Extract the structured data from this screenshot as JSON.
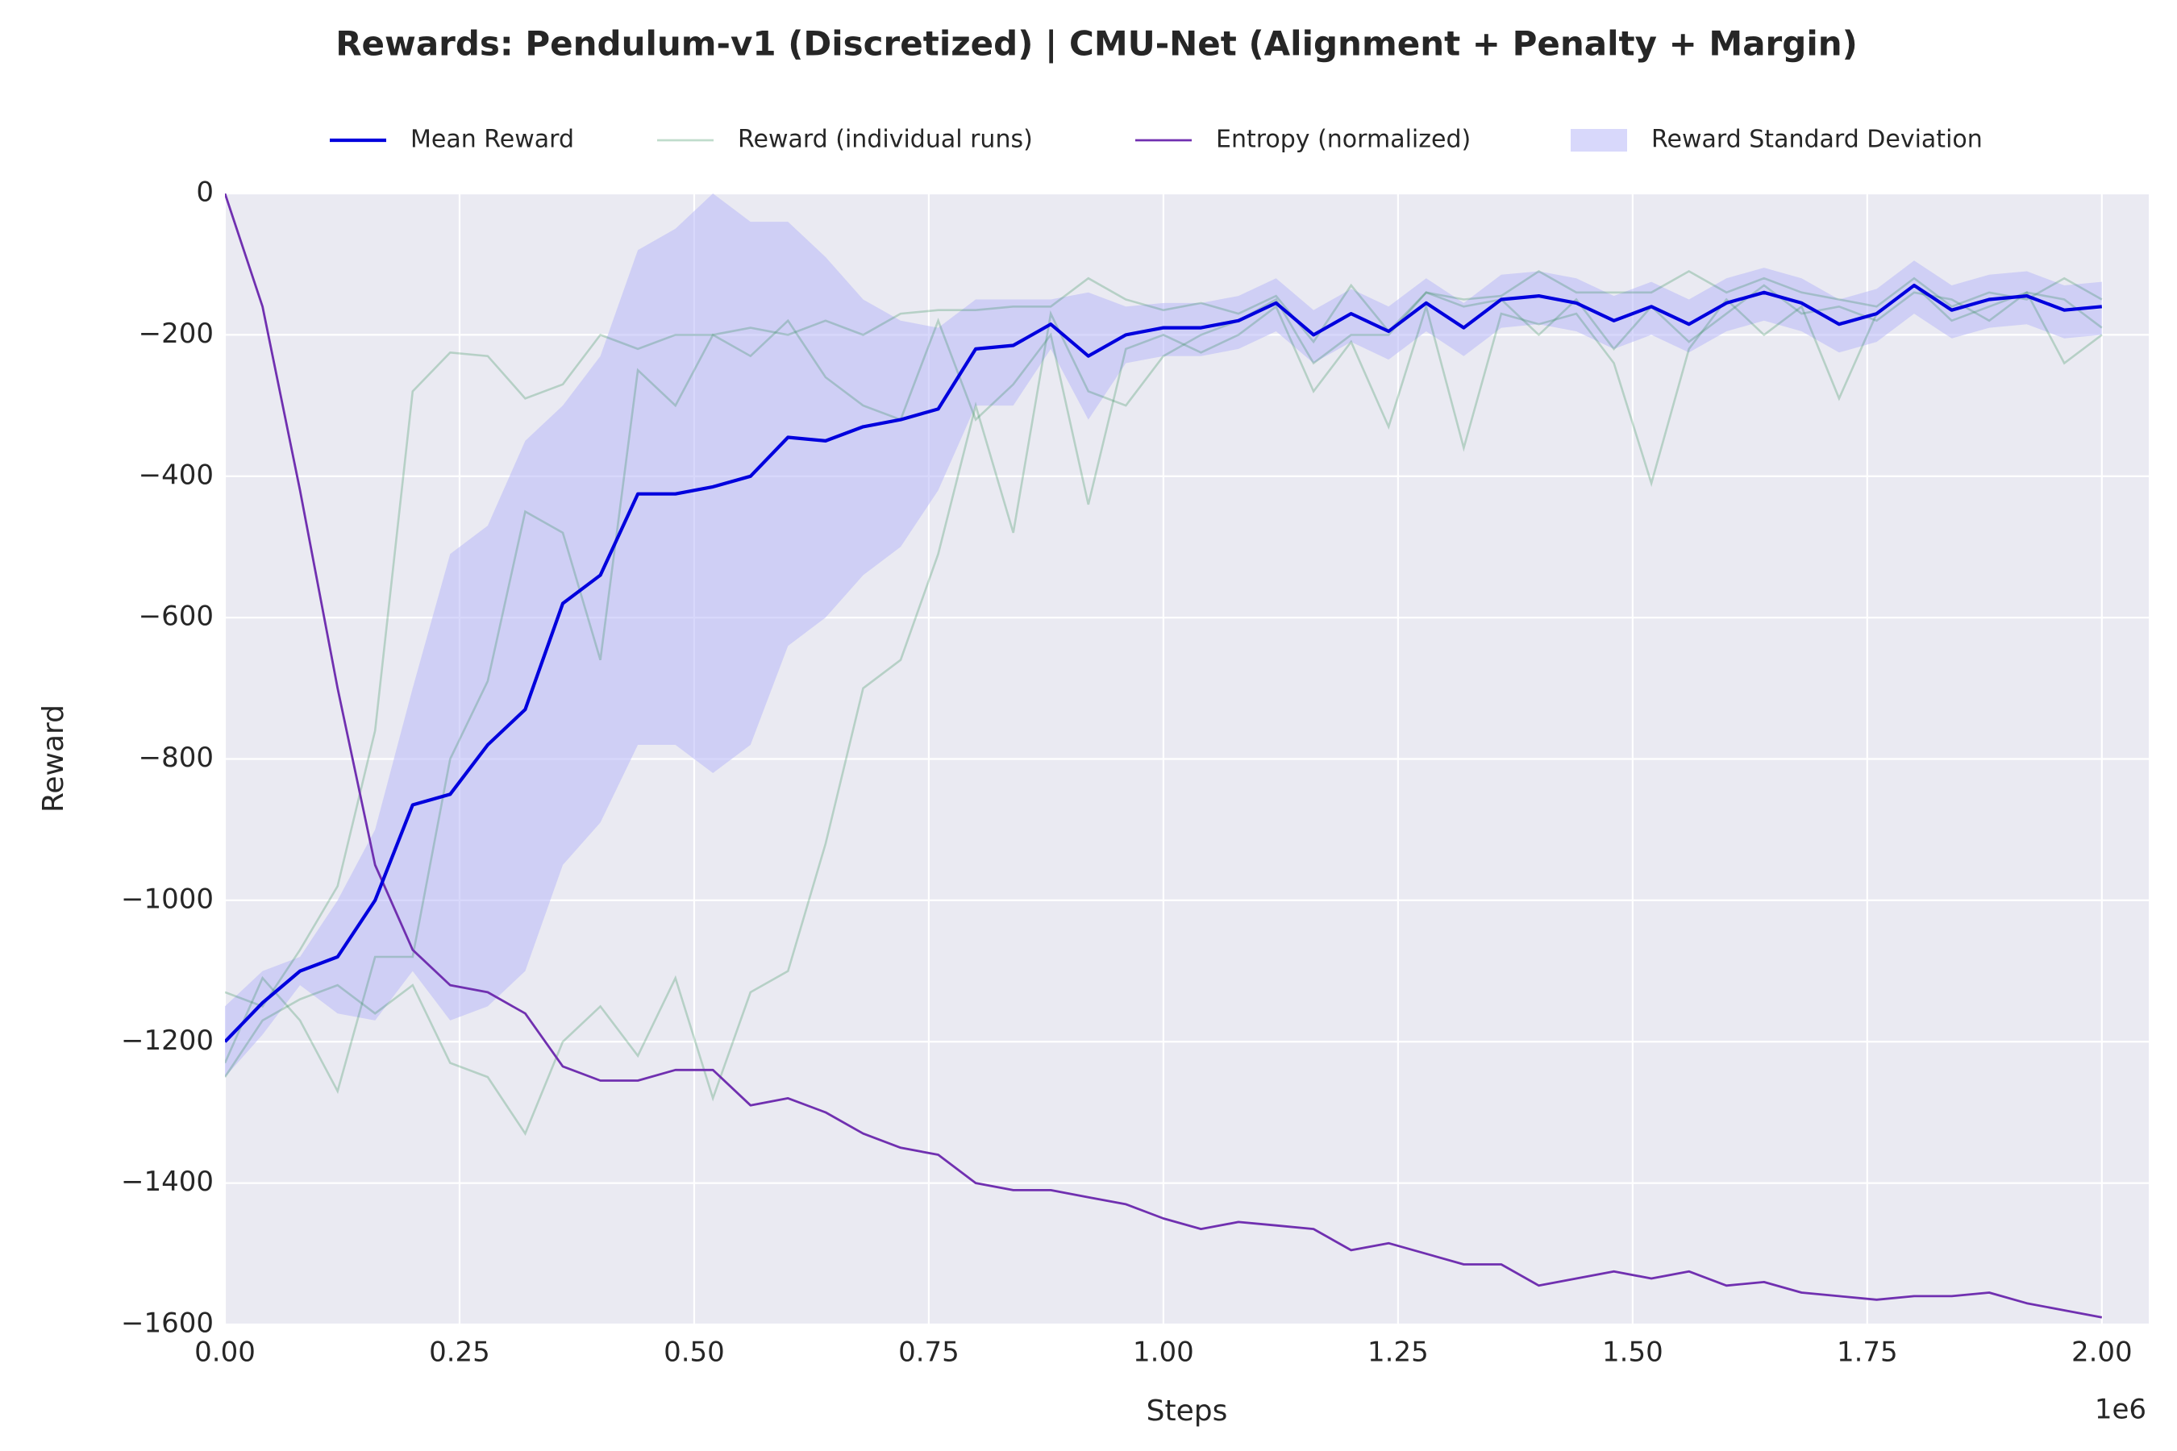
{
  "chart_data": {
    "type": "line",
    "title": "Rewards: Pendulum-v1 (Discretized) | CMU-Net (Alignment + Penalty + Margin)",
    "xlabel": "Steps",
    "ylabel": "Reward",
    "x_offset": "1e6",
    "grid": true,
    "legend": "top",
    "xlim": [
      0,
      2.05
    ],
    "ylim": [
      -1600,
      0
    ],
    "xticks": [
      {
        "value": 0,
        "label": "0.00"
      },
      0.25,
      {
        "value": 0.5,
        "label": "0.50"
      },
      0.75,
      {
        "value": 1,
        "label": "1.00"
      },
      1.25,
      {
        "value": 1.5,
        "label": "1.50"
      },
      1.75,
      {
        "value": 2,
        "label": "2.00"
      }
    ],
    "yticks": [
      {
        "value": -1600,
        "label": "−1600"
      },
      {
        "value": -1400,
        "label": "−1400"
      },
      {
        "value": -1200,
        "label": "−1200"
      },
      {
        "value": -1000,
        "label": "−1000"
      },
      {
        "value": -800,
        "label": "−800"
      },
      {
        "value": -600,
        "label": "−600"
      },
      {
        "value": -400,
        "label": "−400"
      },
      {
        "value": -200,
        "label": "−200"
      },
      0
    ],
    "x": [
      0,
      0.04,
      0.08,
      0.12,
      0.16,
      0.2,
      0.24,
      0.28,
      0.32,
      0.36,
      0.4,
      0.44,
      0.48,
      0.52,
      0.56,
      0.6,
      0.64,
      0.68,
      0.72,
      0.76,
      0.8,
      0.84,
      0.88,
      0.92,
      0.96,
      1,
      1.04,
      1.08,
      1.12,
      1.16,
      1.2,
      1.24,
      1.28,
      1.32,
      1.36,
      1.4,
      1.44,
      1.48,
      1.52,
      1.56,
      1.6,
      1.64,
      1.68,
      1.72,
      1.76,
      1.8,
      1.84,
      1.88,
      1.92,
      1.96,
      2
    ],
    "series": [
      {
        "name": "Mean Reward",
        "color": "#0000dd",
        "values": [
          -1200,
          -1145,
          -1100,
          -1080,
          -1000,
          -865,
          -850,
          -780,
          -730,
          -580,
          -540,
          -425,
          -425,
          -415,
          -400,
          -345,
          -350,
          -330,
          -320,
          -305,
          -220,
          -215,
          -185,
          -230,
          -200,
          -190,
          -190,
          -180,
          -155,
          -200,
          -170,
          -195,
          -155,
          -190,
          -150,
          -145,
          -155,
          -180,
          -160,
          -185,
          -155,
          -140,
          -155,
          -185,
          -170,
          -130,
          -165,
          -150,
          -145,
          -165,
          -160
        ]
      },
      {
        "name": "Reward (individual runs)",
        "color": "#2e8b57",
        "runs": [
          [
            -1130,
            -1150,
            -1070,
            -980,
            -760,
            -280,
            -225,
            -230,
            -290,
            -270,
            -200,
            -220,
            -200,
            -200,
            -190,
            -200,
            -180,
            -200,
            -170,
            -165,
            -165,
            -160,
            -160,
            -120,
            -150,
            -165,
            -155,
            -170,
            -145,
            -210,
            -130,
            -195,
            -140,
            -150,
            -145,
            -110,
            -140,
            -140,
            -140,
            -110,
            -140,
            -120,
            -140,
            -150,
            -160,
            -120,
            -160,
            -140,
            -150,
            -120,
            -150
          ],
          [
            -1230,
            -1110,
            -1170,
            -1270,
            -1080,
            -1080,
            -800,
            -690,
            -450,
            -480,
            -660,
            -250,
            -300,
            -200,
            -230,
            -180,
            -260,
            -300,
            -320,
            -180,
            -320,
            -270,
            -200,
            -440,
            -220,
            -200,
            -225,
            -200,
            -160,
            -280,
            -210,
            -330,
            -160,
            -360,
            -170,
            -185,
            -170,
            -240,
            -410,
            -220,
            -150,
            -200,
            -160,
            -290,
            -170,
            -130,
            -180,
            -160,
            -140,
            -240,
            -200
          ],
          [
            -1250,
            -1170,
            -1140,
            -1120,
            -1160,
            -1120,
            -1230,
            -1250,
            -1330,
            -1200,
            -1150,
            -1220,
            -1110,
            -1280,
            -1130,
            -1100,
            -920,
            -700,
            -660,
            -510,
            -300,
            -480,
            -170,
            -280,
            -300,
            -230,
            -200,
            -180,
            -150,
            -240,
            -200,
            -200,
            -140,
            -160,
            -150,
            -200,
            -150,
            -220,
            -160,
            -210,
            -170,
            -130,
            -170,
            -160,
            -180,
            -140,
            -150,
            -180,
            -140,
            -150,
            -190
          ]
        ]
      },
      {
        "name": "Entropy (normalized)",
        "color": "#7030b0",
        "values": [
          0,
          -160,
          -420,
          -700,
          -950,
          -1070,
          -1120,
          -1130,
          -1160,
          -1235,
          -1255,
          -1255,
          -1240,
          -1240,
          -1290,
          -1280,
          -1300,
          -1330,
          -1350,
          -1360,
          -1400,
          -1410,
          -1410,
          -1420,
          -1430,
          -1450,
          -1465,
          -1455,
          -1460,
          -1465,
          -1495,
          -1485,
          -1500,
          -1515,
          -1515,
          -1545,
          -1535,
          -1525,
          -1535,
          -1525,
          -1545,
          -1540,
          -1555,
          -1560,
          -1565,
          -1560,
          -1560,
          -1555,
          -1570,
          -1580,
          -1590
        ]
      },
      {
        "name": "Reward Standard Deviation",
        "color": "#b8b8f8",
        "upper": [
          -1150,
          -1100,
          -1080,
          -1000,
          -900,
          -700,
          -510,
          -470,
          -350,
          -300,
          -230,
          -80,
          -50,
          0,
          -40,
          -40,
          -90,
          -150,
          -180,
          -190,
          -150,
          -150,
          -150,
          -140,
          -160,
          -155,
          -155,
          -145,
          -120,
          -165,
          -135,
          -160,
          -120,
          -155,
          -115,
          -110,
          -120,
          -145,
          -125,
          -150,
          -120,
          -105,
          -120,
          -150,
          -135,
          -95,
          -130,
          -115,
          -110,
          -130,
          -125
        ],
        "lower": [
          -1250,
          -1190,
          -1120,
          -1160,
          -1170,
          -1100,
          -1170,
          -1150,
          -1100,
          -950,
          -890,
          -780,
          -780,
          -820,
          -780,
          -640,
          -600,
          -540,
          -500,
          -420,
          -300,
          -300,
          -220,
          -320,
          -240,
          -230,
          -230,
          -220,
          -195,
          -240,
          -210,
          -235,
          -195,
          -230,
          -190,
          -185,
          -195,
          -220,
          -200,
          -225,
          -195,
          -180,
          -195,
          -225,
          -210,
          -170,
          -205,
          -190,
          -185,
          -205,
          -200
        ]
      }
    ]
  }
}
